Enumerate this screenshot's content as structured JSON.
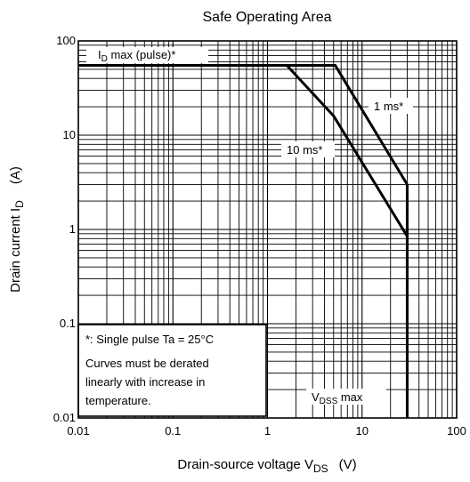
{
  "chart_data": {
    "type": "line",
    "title": "Safe Operating Area",
    "xlabel": {
      "main": "Drain-source voltage   V",
      "sub": "DS",
      "unit": "(V)"
    },
    "ylabel": {
      "main": "Drain current   I",
      "sub": "D",
      "unit": "(A)"
    },
    "x_scale": "log",
    "y_scale": "log",
    "xlim": [
      0.01,
      100
    ],
    "ylim": [
      0.01,
      100
    ],
    "x_ticks": [
      0.01,
      0.1,
      1,
      10,
      100
    ],
    "x_tick_labels": [
      "0.01",
      "0.1",
      "1",
      "10",
      "100"
    ],
    "y_ticks": [
      0.01,
      0.1,
      1,
      10,
      100
    ],
    "y_tick_labels": [
      "0.01",
      "0.1",
      "1",
      "10",
      "100"
    ],
    "grid": true,
    "series": [
      {
        "name": "1 ms*",
        "points": [
          [
            0.01,
            55
          ],
          [
            5.2,
            55
          ],
          [
            30,
            3
          ]
        ]
      },
      {
        "name": "10 ms*",
        "points": [
          [
            0.01,
            55
          ],
          [
            1.6,
            55
          ],
          [
            5,
            16
          ],
          [
            30,
            0.85
          ]
        ]
      }
    ],
    "vdss_limit": {
      "x": 30,
      "y_from": 0.01,
      "y_to": 3
    },
    "annotations": [
      {
        "id": "id-max",
        "prefix": "I",
        "sub": "D",
        "rest": " max (pulse)*"
      },
      {
        "id": "one-ms",
        "text": "1 ms*"
      },
      {
        "id": "ten-ms",
        "text": "10 ms*"
      },
      {
        "id": "vdss",
        "prefix": "V",
        "sub": "DSS",
        "rest": " max"
      }
    ],
    "notes": {
      "line1": "*:  Single pulse    Ta = 25°C",
      "line2": "Curves must be derated",
      "line3": "linearly with increase in",
      "line4": "temperature."
    }
  }
}
